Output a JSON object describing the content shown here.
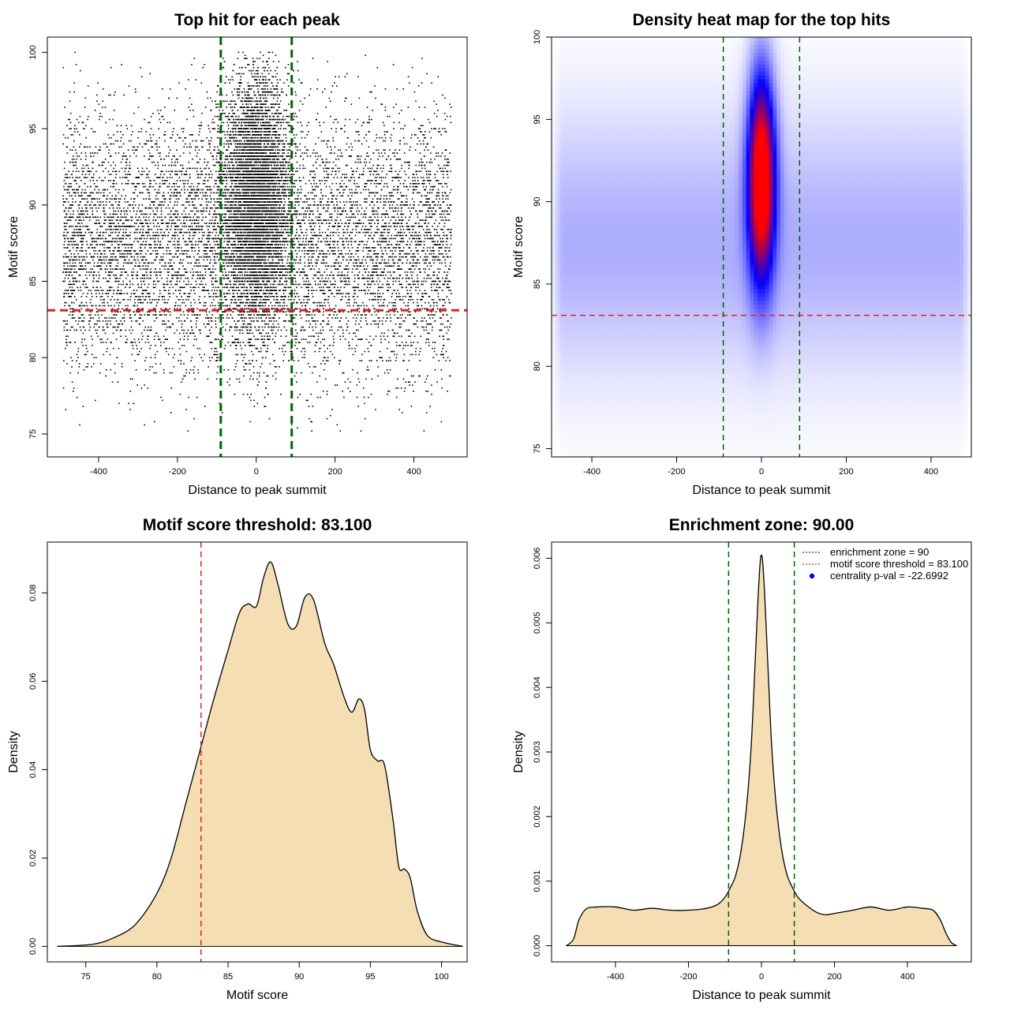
{
  "figure": {
    "background": "#ffffff"
  },
  "chart_data": [
    {
      "id": "scatter",
      "type": "scatter",
      "title": "Top hit for each peak",
      "xlabel": "Distance to peak summit",
      "ylabel": "Motif score",
      "xlim": [
        -530,
        535
      ],
      "ylim": [
        73.5,
        101
      ],
      "xticks": [
        -400,
        -200,
        0,
        200,
        400
      ],
      "yticks": [
        75,
        80,
        85,
        90,
        95,
        100
      ],
      "point_color": "#000000",
      "vlines": [
        {
          "x": -90,
          "color": "#006400",
          "style": "dashed"
        },
        {
          "x": 90,
          "color": "#006400",
          "style": "dashed"
        }
      ],
      "hlines": [
        {
          "y": 83.1,
          "color": "#dd2222",
          "style": "dashed"
        }
      ],
      "distribution": {
        "x_range": [
          -490,
          495
        ],
        "y_range": [
          75,
          100
        ],
        "background_score_mean": 87.5,
        "background_score_sd": 4.2,
        "central_score_mean": 90.5,
        "central_score_sd": 4.0,
        "central_sd_distance": 40
      }
    },
    {
      "id": "heatmap",
      "type": "heatmap",
      "title": "Density heat map for the top hits",
      "xlabel": "Distance to peak summit",
      "ylabel": "Motif score",
      "xlim": [
        -495,
        495
      ],
      "ylim": [
        74.5,
        100
      ],
      "xticks": [
        -400,
        -200,
        0,
        200,
        400
      ],
      "yticks": [
        75,
        80,
        85,
        90,
        95,
        100
      ],
      "colors": [
        "#ffffff",
        "#0000ff",
        "#ff0000"
      ],
      "hotspot": {
        "x": 0,
        "y": 91.5
      },
      "vlines": [
        {
          "x": -90,
          "color": "#006400",
          "style": "dashed"
        },
        {
          "x": 90,
          "color": "#006400",
          "style": "dashed"
        }
      ],
      "hlines": [
        {
          "y": 83.1,
          "color": "#dd2222",
          "style": "dashed"
        }
      ]
    },
    {
      "id": "score_density",
      "type": "area",
      "title": "Motif score threshold: 83.100",
      "xlabel": "Motif score",
      "ylabel": "Density",
      "xlim": [
        72.3,
        101.8
      ],
      "ylim": [
        -0.0035,
        0.0915
      ],
      "xticks": [
        75,
        80,
        85,
        90,
        95,
        100
      ],
      "yticks": [
        0.0,
        0.02,
        0.04,
        0.06,
        0.08
      ],
      "ytick_labels": [
        "0.00",
        "0.02",
        "0.04",
        "0.06",
        "0.08"
      ],
      "fill": "#f5deb3",
      "line": "#000000",
      "x": [
        73.0,
        75.5,
        77.0,
        78.5,
        80.0,
        81.0,
        82.0,
        83.0,
        84.0,
        85.0,
        85.8,
        86.4,
        87.0,
        87.5,
        88.0,
        88.5,
        89.2,
        89.8,
        90.4,
        91.0,
        91.8,
        92.4,
        93.2,
        93.7,
        94.2,
        94.6,
        95.0,
        95.5,
        96.0,
        96.6,
        97.0,
        97.4,
        97.8,
        98.3,
        99.0,
        100.0,
        101.5
      ],
      "values": [
        0.0,
        0.0005,
        0.002,
        0.005,
        0.012,
        0.02,
        0.032,
        0.044,
        0.056,
        0.067,
        0.0755,
        0.0775,
        0.077,
        0.0835,
        0.087,
        0.082,
        0.073,
        0.0725,
        0.079,
        0.0785,
        0.0685,
        0.064,
        0.056,
        0.053,
        0.056,
        0.0535,
        0.0445,
        0.042,
        0.041,
        0.0285,
        0.018,
        0.0175,
        0.0155,
        0.008,
        0.0025,
        0.001,
        0.0
      ],
      "vlines": [
        {
          "x": 83.1,
          "color": "#dd2222",
          "style": "dashed"
        }
      ]
    },
    {
      "id": "distance_density",
      "type": "area",
      "title": "Enrichment zone: 90.00",
      "xlabel": "Distance to peak summit",
      "ylabel": "Density",
      "xlim": [
        -575,
        575
      ],
      "ylim": [
        -0.00025,
        0.00625
      ],
      "xticks": [
        -400,
        -200,
        0,
        200,
        400
      ],
      "yticks": [
        0.0,
        0.001,
        0.002,
        0.003,
        0.004,
        0.005,
        0.006
      ],
      "ytick_labels": [
        "0.000",
        "0.001",
        "0.002",
        "0.003",
        "0.004",
        "0.005",
        "0.006"
      ],
      "fill": "#f5deb3",
      "line": "#000000",
      "x": [
        -535,
        -515,
        -500,
        -480,
        -450,
        -400,
        -350,
        -300,
        -250,
        -200,
        -150,
        -120,
        -100,
        -85,
        -70,
        -55,
        -40,
        -28,
        -18,
        -10,
        -4,
        0,
        4,
        10,
        18,
        28,
        40,
        55,
        70,
        85,
        100,
        120,
        150,
        175,
        200,
        250,
        300,
        350,
        400,
        440,
        470,
        490,
        505,
        520,
        535
      ],
      "values": [
        0.0,
        0.0001,
        0.0004,
        0.00057,
        0.0006,
        0.0006,
        0.00055,
        0.00058,
        0.00055,
        0.00055,
        0.00058,
        0.00064,
        0.00075,
        0.0009,
        0.0011,
        0.0015,
        0.0022,
        0.0031,
        0.0043,
        0.0053,
        0.0059,
        0.00605,
        0.0059,
        0.0053,
        0.0043,
        0.0031,
        0.0022,
        0.0015,
        0.0011,
        0.0009,
        0.00075,
        0.00064,
        0.00052,
        0.00048,
        0.0005,
        0.00055,
        0.0006,
        0.00055,
        0.0006,
        0.00058,
        0.00055,
        0.0004,
        0.0002,
        5e-05,
        0.0
      ],
      "vlines": [
        {
          "x": -90,
          "color": "#006400",
          "style": "dashed"
        },
        {
          "x": 90,
          "color": "#006400",
          "style": "dashed"
        }
      ],
      "legend": {
        "placement": "top-right",
        "entries": [
          {
            "label": "enrichment zone = 90",
            "color": "#006400",
            "marker": "dotted-line"
          },
          {
            "label": "motif score threshold = 83.100",
            "color": "#dd2222",
            "marker": "dotted-line"
          },
          {
            "label": "centrality p-val = -22.6992",
            "color": "#0000ff",
            "marker": "point"
          }
        ]
      }
    }
  ]
}
